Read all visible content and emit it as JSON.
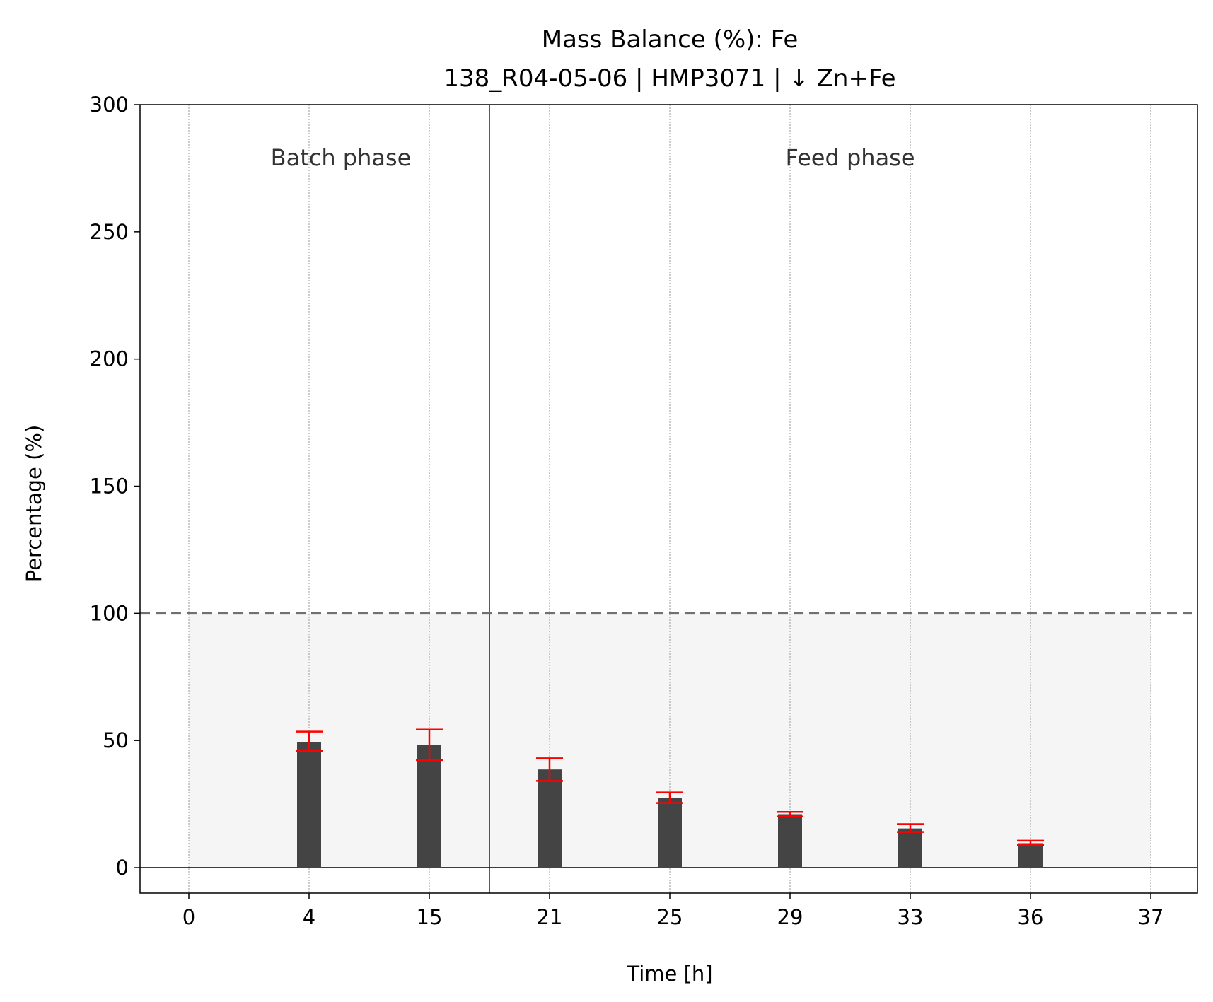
{
  "chart_data": {
    "type": "bar",
    "title": "Mass Balance (%): Fe",
    "subtitle": "138_R04-05-06 | HMP3071 | ↓ Zn+Fe",
    "xlabel": "Time [h]",
    "ylabel": "Percentage (%)",
    "categories": [
      "0",
      "4",
      "15",
      "21",
      "25",
      "29",
      "33",
      "36",
      "37"
    ],
    "values": [
      null,
      49.3,
      48.3,
      38.6,
      27.5,
      21.0,
      15.4,
      9.6,
      null
    ],
    "error_low": [
      null,
      45.9,
      42.3,
      34.1,
      25.4,
      20.1,
      14.0,
      8.9,
      null
    ],
    "error_high": [
      null,
      53.5,
      54.3,
      43.0,
      29.6,
      21.9,
      17.1,
      10.6,
      null
    ],
    "ylim": [
      -10,
      300
    ],
    "yticks": [
      0,
      50,
      100,
      150,
      200,
      250,
      300
    ],
    "reference_line": 100,
    "shaded_band": [
      0,
      100
    ],
    "phases": [
      {
        "label": "Batch phase",
        "range": [
          "0",
          "15"
        ]
      },
      {
        "label": "Feed phase",
        "range": [
          "21",
          "37"
        ]
      }
    ],
    "colors": {
      "bar": "#444444",
      "error": "#ff0000",
      "reference": "#707070",
      "band": "#f5f5f5",
      "grid": "#9a9a9a",
      "phase_text": "#333333"
    },
    "grid": "vertical dotted"
  }
}
